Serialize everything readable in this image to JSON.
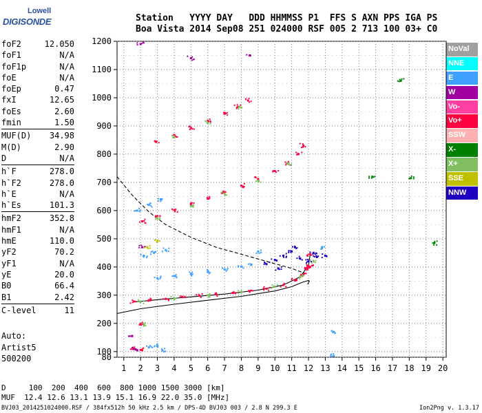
{
  "logo": {
    "line1": "Lowell",
    "line2": "DIGISONDE"
  },
  "header": {
    "line1": "Station   YYYY DAY   DDD HHMMSS P1  FFS S AXN PPS IGA PS",
    "line2": "Boa Vista 2014 Sep08 251 024000 RSF 005 2 713 100 03+ C0"
  },
  "params": [
    [
      {
        "k": "foF2",
        "v": "12.050"
      },
      {
        "k": "foF1",
        "v": "N/A"
      },
      {
        "k": "foF1p",
        "v": "N/A"
      },
      {
        "k": "foE",
        "v": "N/A"
      },
      {
        "k": "foEp",
        "v": "0.47"
      },
      {
        "k": "fxI",
        "v": "12.65"
      },
      {
        "k": "foEs",
        "v": "2.60"
      },
      {
        "k": "fmin",
        "v": "1.50"
      }
    ],
    [
      {
        "k": "MUF(D)",
        "v": "34.98"
      },
      {
        "k": "M(D)",
        "v": "2.90"
      },
      {
        "k": "D",
        "v": "N/A"
      }
    ],
    [
      {
        "k": "h`F",
        "v": "278.0"
      },
      {
        "k": "h`F2",
        "v": "278.0"
      },
      {
        "k": "h`E",
        "v": "N/A"
      },
      {
        "k": "h`Es",
        "v": "101.3"
      }
    ],
    [
      {
        "k": "hmF2",
        "v": "352.8"
      },
      {
        "k": "hmF1",
        "v": "N/A"
      },
      {
        "k": "hmE",
        "v": "110.0"
      },
      {
        "k": "yF2",
        "v": "70.2"
      },
      {
        "k": "yF1",
        "v": "N/A"
      },
      {
        "k": "yE",
        "v": "20.0"
      },
      {
        "k": "B0",
        "v": "66.4"
      },
      {
        "k": "B1",
        "v": "2.42"
      }
    ],
    [
      {
        "k": "C-level",
        "v": "11"
      }
    ]
  ],
  "auto": [
    "Auto:",
    "Artist5",
    "500200"
  ],
  "legend": [
    {
      "label": "NoVal",
      "color": "#a0a0a0"
    },
    {
      "label": "NNE",
      "color": "#00ffff"
    },
    {
      "label": "E",
      "color": "#40a0ff"
    },
    {
      "label": "W",
      "color": "#a000a0"
    },
    {
      "label": "Vo-",
      "color": "#ff40a0"
    },
    {
      "label": "Vo+",
      "color": "#ff0040"
    },
    {
      "label": "SSW",
      "color": "#ffb0b0"
    },
    {
      "label": "X-",
      "color": "#008000"
    },
    {
      "label": "X+",
      "color": "#80c060"
    },
    {
      "label": "SSE",
      "color": "#c0c000"
    },
    {
      "label": "NNW",
      "color": "#2000c0"
    }
  ],
  "footer": {
    "line1": "D     100  200  400  600  800 1000 1500 3000 [km]",
    "line2": "MUF  12.4 12.6 13.1 13.9 15.1 16.9 22.0 35.0 [MHz]",
    "line3": "BVJ03_2014251024000.RSF / 384fx512h 50 kHz 2.5 km / DPS-4D BVJ03 003 / 2.8 N 299.3 E",
    "line4": "Ion2Png v. 1.3.17"
  },
  "chart_data": {
    "type": "scatter",
    "xlim": [
      0.6,
      20.2
    ],
    "ylim": [
      80,
      1200
    ],
    "xticks": [
      1,
      2,
      3,
      4,
      5,
      6,
      7,
      8,
      9,
      10,
      11,
      12,
      13,
      14,
      15,
      16,
      17,
      18,
      19,
      20
    ],
    "yticks": [
      80,
      100,
      200,
      300,
      400,
      500,
      600,
      700,
      800,
      900,
      1000,
      1100,
      1200
    ],
    "grid": true,
    "series": [
      {
        "name": "Vo+",
        "color": "#ff0040",
        "points": [
          [
            1.6,
            278
          ],
          [
            2.5,
            282
          ],
          [
            3.5,
            287
          ],
          [
            4.5,
            293
          ],
          [
            5.5,
            298
          ],
          [
            6.5,
            303
          ],
          [
            7.5,
            308
          ],
          [
            8.5,
            314
          ],
          [
            9.5,
            323
          ],
          [
            10.5,
            336
          ],
          [
            11.2,
            352
          ],
          [
            11.7,
            373
          ],
          [
            12.0,
            403
          ],
          [
            12.1,
            445
          ],
          [
            2.1,
            562
          ],
          [
            3,
            580
          ],
          [
            4,
            602
          ],
          [
            5,
            622
          ],
          [
            6,
            642
          ],
          [
            7,
            665
          ],
          [
            8,
            688
          ],
          [
            9,
            712
          ],
          [
            10,
            740
          ],
          [
            10.8,
            768
          ],
          [
            11.4,
            800
          ],
          [
            11.7,
            830
          ],
          [
            2.9,
            845
          ],
          [
            4,
            868
          ],
          [
            5,
            893
          ],
          [
            6,
            918
          ],
          [
            7,
            943
          ],
          [
            7.8,
            968
          ],
          [
            8.4,
            990
          ],
          [
            2.0,
            198
          ],
          [
            1.6,
            110
          ],
          [
            2.0,
            106
          ],
          [
            11.8,
            395
          ],
          [
            12.1,
            400
          ]
        ]
      },
      {
        "name": "X+",
        "color": "#80c060",
        "points": [
          [
            2,
            276
          ],
          [
            4,
            288
          ],
          [
            6,
            300
          ],
          [
            8,
            310
          ],
          [
            10,
            330
          ],
          [
            11.5,
            365
          ],
          [
            12.3,
            420
          ],
          [
            3,
            575
          ],
          [
            5,
            615
          ],
          [
            7,
            660
          ],
          [
            9,
            705
          ],
          [
            10.8,
            765
          ],
          [
            4,
            860
          ],
          [
            6,
            910
          ],
          [
            8,
            965
          ],
          [
            2.2,
            196
          ]
        ]
      },
      {
        "name": "E",
        "color": "#40a0ff",
        "points": [
          [
            3.0,
            360
          ],
          [
            4,
            368
          ],
          [
            5,
            375
          ],
          [
            6,
            383
          ],
          [
            7,
            392
          ],
          [
            8,
            401
          ],
          [
            8.6,
            408
          ],
          [
            2.2,
            440
          ],
          [
            2.8,
            450
          ],
          [
            3.5,
            460
          ],
          [
            1.8,
            600
          ],
          [
            2.5,
            620
          ],
          [
            3.2,
            640
          ],
          [
            2.5,
            115
          ],
          [
            3.0,
            120
          ],
          [
            3.3,
            104
          ],
          [
            13.5,
            85
          ],
          [
            13.5,
            170
          ],
          [
            12.8,
            470
          ],
          [
            9,
            455
          ]
        ]
      },
      {
        "name": "NNW",
        "color": "#2000c0",
        "points": [
          [
            10,
            425
          ],
          [
            10.5,
            440
          ],
          [
            11,
            455
          ],
          [
            11.5,
            430
          ],
          [
            12,
            420
          ],
          [
            12.5,
            435
          ],
          [
            13,
            440
          ],
          [
            9.5,
            410
          ],
          [
            10.2,
            395
          ],
          [
            11.2,
            470
          ],
          [
            12.3,
            450
          ]
        ]
      },
      {
        "name": "W",
        "color": "#a000a0",
        "points": [
          [
            1.5,
            155
          ],
          [
            1.7,
            108
          ],
          [
            2.1,
            470
          ],
          [
            5,
            1140
          ],
          [
            8.5,
            1150
          ],
          [
            2.0,
            1190
          ]
        ]
      },
      {
        "name": "X-",
        "color": "#008000",
        "points": [
          [
            15.8,
            720
          ],
          [
            17.5,
            1060
          ],
          [
            18.1,
            715
          ],
          [
            19.5,
            485
          ]
        ]
      },
      {
        "name": "SSE",
        "color": "#c0c000",
        "points": [
          [
            3.0,
            490
          ],
          [
            2.4,
            470
          ]
        ]
      }
    ],
    "curves": [
      {
        "name": "hmF2",
        "style": "solid",
        "points": [
          [
            0.6,
            235
          ],
          [
            2,
            252
          ],
          [
            4,
            268
          ],
          [
            6,
            282
          ],
          [
            8,
            296
          ],
          [
            10,
            315
          ],
          [
            11,
            330
          ],
          [
            11.6,
            345
          ],
          [
            12.0,
            352
          ],
          [
            12.05,
            350
          ],
          [
            11.95,
            338
          ]
        ]
      },
      {
        "name": "hmF2",
        "style": "solid",
        "points": [
          [
            1.5,
            275
          ],
          [
            3,
            284
          ],
          [
            5,
            294
          ],
          [
            7,
            304
          ],
          [
            9,
            318
          ],
          [
            10.5,
            336
          ],
          [
            11.5,
            365
          ],
          [
            12.0,
            405
          ],
          [
            12.1,
            445
          ]
        ]
      },
      {
        "name": "dashed",
        "style": "dashed",
        "points": [
          [
            0.6,
            720
          ],
          [
            1.5,
            655
          ],
          [
            2.5,
            595
          ],
          [
            3.5,
            550
          ],
          [
            5,
            505
          ],
          [
            6.5,
            470
          ],
          [
            8,
            445
          ],
          [
            9.5,
            420
          ],
          [
            11,
            395
          ],
          [
            11.8,
            377
          ]
        ]
      }
    ]
  }
}
